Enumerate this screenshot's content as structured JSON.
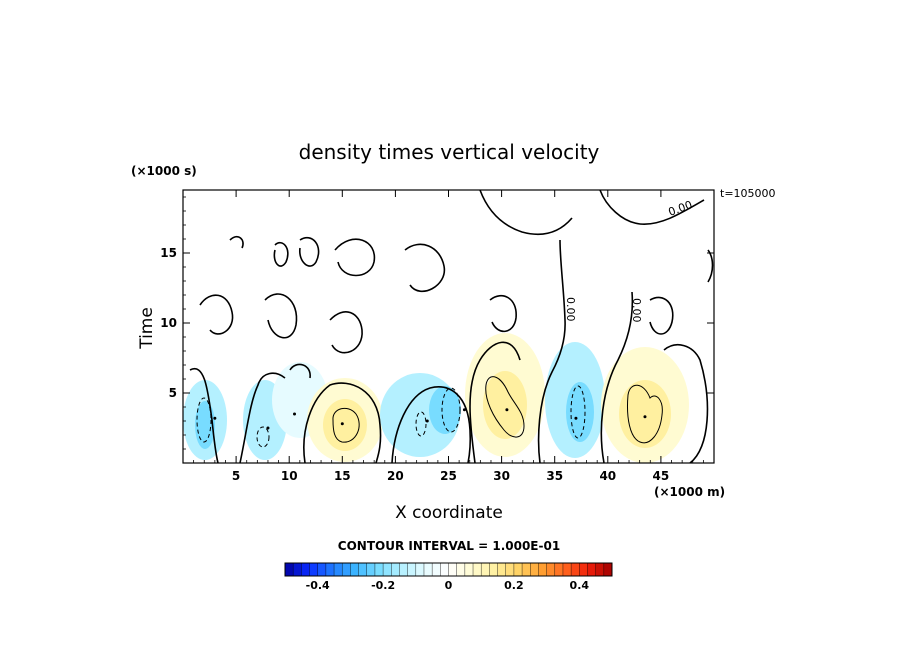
{
  "chart_data": {
    "type": "heatmap",
    "title": "density times vertical velocity",
    "xlabel": "X coordinate",
    "ylabel": "Time",
    "x_unit_label": "(×1000 m)",
    "y_unit_label": "(×1000 s)",
    "time_stamp": "t=105000",
    "xlim": [
      0,
      50
    ],
    "ylim": [
      0,
      19.5
    ],
    "x_ticks": [
      "5",
      "10",
      "15",
      "20",
      "25",
      "30",
      "35",
      "40",
      "45"
    ],
    "y_ticks": [
      "5",
      "10",
      "15"
    ],
    "contour_interval_label": "CONTOUR INTERVAL = 1.000E-01",
    "zero_contour_labels": [
      "0.00",
      "0.00",
      "0.00"
    ],
    "colorbar": {
      "range": [
        -0.5,
        0.5
      ],
      "ticks": [
        "-0.4",
        "-0.2",
        "0",
        "0.2",
        "0.4"
      ],
      "tick_values": [
        -0.4,
        -0.2,
        0,
        0.2,
        0.4
      ],
      "colors": [
        "#00009e",
        "#0a2aff",
        "#1e78ff",
        "#3cb4ff",
        "#78dcff",
        "#b4f0ff",
        "#e6fbff",
        "#ffffff",
        "#fffbd2",
        "#fff0a0",
        "#ffd264",
        "#ffa032",
        "#ff641e",
        "#f01e0a",
        "#a00000"
      ]
    },
    "features": [
      {
        "x": 3,
        "t": 3.2,
        "value": -0.12
      },
      {
        "x": 8,
        "t": 2.5,
        "value": -0.1
      },
      {
        "x": 10.5,
        "t": 3.5,
        "value": -0.06
      },
      {
        "x": 15,
        "t": 2.8,
        "value": 0.13
      },
      {
        "x": 23,
        "t": 3.0,
        "value": -0.12
      },
      {
        "x": 26.5,
        "t": 3.8,
        "value": -0.13
      },
      {
        "x": 30.5,
        "t": 3.8,
        "value": 0.18
      },
      {
        "x": 37,
        "t": 3.2,
        "value": -0.13
      },
      {
        "x": 43.5,
        "t": 3.3,
        "value": 0.18
      }
    ]
  }
}
